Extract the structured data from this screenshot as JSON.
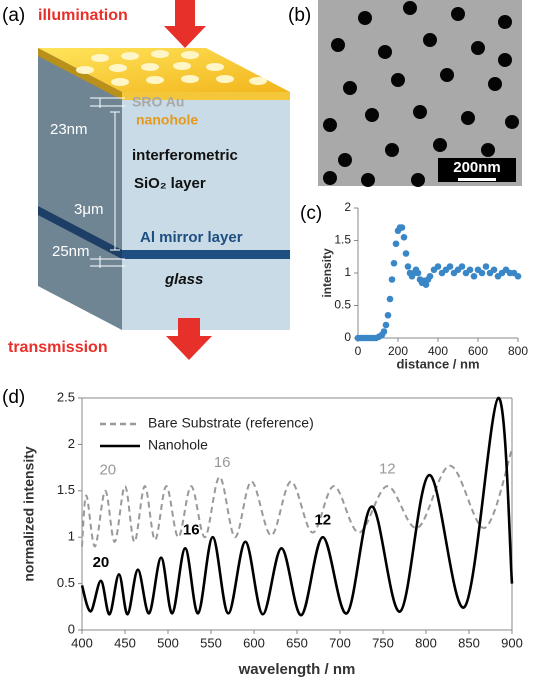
{
  "panel_labels": [
    "(a)",
    "(b)",
    "(c)",
    "(d)"
  ],
  "diagram": {
    "illumination": "illumination",
    "au_label": "SRO Au",
    "nanohole": "nanohole",
    "thickness_top": "23nm",
    "sio2_line1": "interferometric",
    "sio2_line2": "SiO₂ layer",
    "thickness_mid": "3μm",
    "thickness_bottom": "25nm",
    "al_layer": "Al mirror layer",
    "glass": "glass",
    "transmission": "transmission"
  },
  "sem_image": {
    "scale_bar": "200nm"
  },
  "chart_data": [
    {
      "type": "scatter",
      "color": "#3a87c8",
      "x": [
        0,
        15,
        30,
        45,
        60,
        75,
        90,
        105,
        120,
        130,
        140,
        150,
        160,
        170,
        180,
        190,
        200,
        210,
        220,
        230,
        240,
        250,
        260,
        270,
        280,
        290,
        300,
        310,
        320,
        330,
        340,
        350,
        360,
        380,
        400,
        420,
        440,
        460,
        480,
        500,
        520,
        540,
        560,
        580,
        600,
        620,
        640,
        660,
        680,
        700,
        720,
        740,
        760,
        780,
        800
      ],
      "values": [
        0,
        0,
        0,
        0,
        0,
        0,
        0,
        0.02,
        0.05,
        0.1,
        0.2,
        0.35,
        0.6,
        0.9,
        1.15,
        1.45,
        1.65,
        1.7,
        1.7,
        1.55,
        1.3,
        1.1,
        1.0,
        0.95,
        1.0,
        1.05,
        1.0,
        0.9,
        0.85,
        0.88,
        0.82,
        0.9,
        0.95,
        1.05,
        1.1,
        1.0,
        1.05,
        1.1,
        1.0,
        1.05,
        1.1,
        1.0,
        1.05,
        0.95,
        1.05,
        1.0,
        1.1,
        1.0,
        1.05,
        0.95,
        1.0,
        1.05,
        1.0,
        1.0,
        0.95
      ],
      "xlim": [
        0,
        800
      ],
      "xticks": [
        0,
        200,
        400,
        600,
        800
      ],
      "ylim": [
        0,
        2
      ],
      "yticks": [
        0,
        0.5,
        1,
        1.5,
        2
      ],
      "xlabel": "distance / nm",
      "ylabel": "intensity"
    },
    {
      "type": "line",
      "legend": "upper left",
      "xlim": [
        400,
        900
      ],
      "xticks": [
        400,
        450,
        500,
        550,
        600,
        650,
        700,
        750,
        800,
        850,
        900
      ],
      "ylim": [
        0,
        2.5
      ],
      "yticks": [
        0,
        0.5,
        1,
        1.5,
        2,
        2.5
      ],
      "xlabel": "wavelength / nm",
      "ylabel": "normalized intensity",
      "series": [
        {
          "name": "Bare Substrate (reference)",
          "color": "#999999",
          "line_style": "dashed",
          "x": [
            400,
            405,
            415,
            427,
            438,
            450,
            461,
            473,
            485,
            498,
            512,
            527,
            543,
            560,
            578,
            597,
            620,
            643,
            668,
            693,
            722,
            755,
            790,
            828,
            868,
            900
          ],
          "values": [
            0.9,
            1.45,
            0.9,
            1.5,
            0.95,
            1.55,
            0.95,
            1.55,
            0.97,
            1.55,
            1.0,
            1.55,
            1.0,
            1.65,
            1.0,
            1.6,
            1.02,
            1.6,
            1.05,
            1.55,
            1.05,
            1.55,
            1.1,
            1.77,
            1.1,
            1.95
          ]
        },
        {
          "name": "Nanohole",
          "color": "#000000",
          "line_style": "solid",
          "x": [
            400,
            410,
            422,
            432,
            443,
            453,
            465,
            478,
            492,
            505,
            520,
            535,
            552,
            570,
            590,
            610,
            632,
            655,
            680,
            708,
            737,
            770,
            804,
            845,
            884,
            900
          ],
          "values": [
            0.48,
            0.2,
            0.53,
            0.17,
            0.6,
            0.17,
            0.65,
            0.18,
            0.78,
            0.18,
            0.88,
            0.18,
            1.0,
            0.18,
            0.95,
            0.17,
            0.88,
            0.16,
            1.0,
            0.18,
            1.33,
            0.2,
            1.67,
            0.25,
            2.5,
            0.5
          ]
        }
      ],
      "annotations": [
        {
          "text": "20",
          "color": "#999999"
        },
        {
          "text": "16",
          "color": "#999999"
        },
        {
          "text": "12",
          "color": "#999999"
        },
        {
          "text": "20",
          "color": "#000000"
        },
        {
          "text": "16",
          "color": "#000000"
        },
        {
          "text": "12",
          "color": "#000000"
        }
      ]
    }
  ]
}
